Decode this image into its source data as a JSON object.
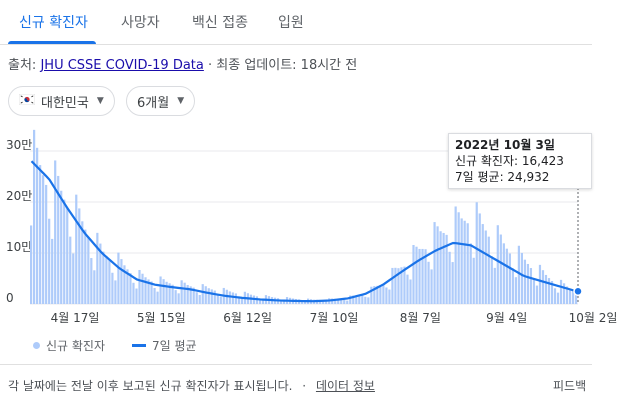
{
  "tabs": [
    {
      "label": "신규 확진자",
      "active": true
    },
    {
      "label": "사망자",
      "active": false
    },
    {
      "label": "백신 접종",
      "active": false
    },
    {
      "label": "입원",
      "active": false
    }
  ],
  "source": {
    "prefix": "출처:",
    "link": "JHU CSSE COVID-19 Data",
    "updated": "· 최종 업데이트: 18시간 전"
  },
  "filters": {
    "region": {
      "label": "대한민국",
      "icon": "korea-flag-icon"
    },
    "period": {
      "label": "6개월"
    }
  },
  "tooltip": {
    "date": "2022년 10월 3일",
    "new_cases": "신규 확진자: 16,423",
    "avg": "7일 평균: 24,932"
  },
  "legend": {
    "bars": "신규 확진자",
    "line": "7일 평균"
  },
  "footer": {
    "note": "각 날짜에는 전날 이후 보고된 신규 확진자가 표시됩니다.",
    "sep": "·",
    "data_info": "데이터 정보",
    "feedback": "피드백"
  },
  "colors": {
    "bar": "#aecbfa",
    "line": "#1a73e8",
    "grid": "#e8eaed"
  },
  "chart_data": {
    "type": "bar",
    "title": "",
    "xlabel": "",
    "ylabel": "",
    "y_ticks": [
      "0",
      "10만",
      "20만",
      "30만"
    ],
    "ylim": [
      0,
      300000
    ],
    "x_tick_labels": [
      "4월 17일",
      "5월 15일",
      "6월 12일",
      "7월 10일",
      "8월 7일",
      "9월 4일",
      "10월 2일"
    ],
    "grid": true,
    "series": [
      {
        "name": "신규 확진자",
        "type": "bar",
        "values_weekly": [
          280000,
          240000,
          200000,
          150000,
          100000,
          80000,
          55000,
          45000,
          40000,
          35000,
          30000,
          25000,
          20000,
          15000,
          12000,
          10000,
          8000,
          9000,
          12000,
          20000,
          40000,
          70000,
          100000,
          130000,
          150000,
          170000,
          140000,
          110000,
          85000,
          60000,
          40000,
          25000
        ]
      },
      {
        "name": "7일 평균",
        "type": "line",
        "values_weekly": [
          280000,
          245000,
          190000,
          140000,
          100000,
          70000,
          48000,
          38000,
          33000,
          29000,
          22000,
          16000,
          12000,
          9000,
          7000,
          6000,
          5500,
          7000,
          11000,
          20000,
          38000,
          62000,
          85000,
          105000,
          120000,
          115000,
          95000,
          75000,
          55000,
          45000,
          35000,
          25000
        ]
      }
    ],
    "highlight": {
      "date": "2022년 10월 3일",
      "new_cases": 16423,
      "avg_7day": 24932
    }
  }
}
